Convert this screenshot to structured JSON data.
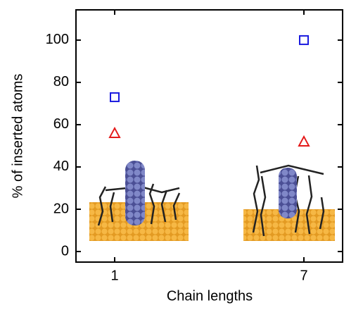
{
  "chart_data": {
    "type": "scatter",
    "xlabel": "Chain lengths",
    "ylabel": "% of inserted atoms",
    "categories": [
      "1",
      "7"
    ],
    "series": [
      {
        "color": "#1a1adf",
        "marker": "square",
        "values": [
          73,
          100
        ]
      },
      {
        "color": "#e41a1a",
        "marker": "triangle",
        "values": [
          56,
          52
        ]
      }
    ],
    "ylim": [
      -5,
      114.3
    ],
    "yticks": [
      0,
      20,
      40,
      60,
      80,
      100
    ]
  }
}
